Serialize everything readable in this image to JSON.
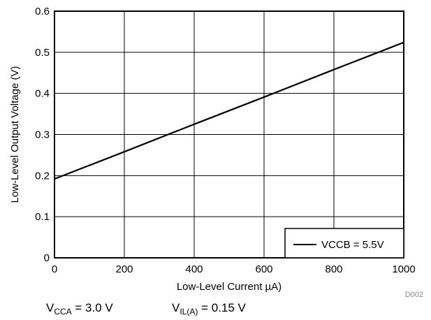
{
  "chart_data": {
    "type": "line",
    "xlabel": "Low-Level Current µA)",
    "ylabel": "Low-Level Output Voltage (V)",
    "xlim": [
      0,
      1000
    ],
    "ylim": [
      0,
      0.6
    ],
    "x_ticks": [
      0,
      200,
      400,
      600,
      800,
      1000
    ],
    "y_ticks": [
      0,
      0.1,
      0.2,
      0.3,
      0.4,
      0.5,
      0.6
    ],
    "x_tick_labels": [
      "0",
      "200",
      "400",
      "600",
      "800",
      "1000"
    ],
    "y_tick_labels": [
      "0",
      "0.1",
      "0.2",
      "0.3",
      "0.4",
      "0.5",
      "0.6"
    ],
    "grid": true,
    "legend_position": "bottom-right",
    "series": [
      {
        "name": "VCCB = 5.5V",
        "color": "#000000",
        "x": [
          0,
          200,
          400,
          600,
          800,
          1000
        ],
        "y": [
          0.192,
          0.258,
          0.325,
          0.391,
          0.458,
          0.524
        ]
      }
    ],
    "figure_id": "D002",
    "conditions": [
      {
        "main": "V",
        "sub": "CCA",
        "rest": " = 3.0 V"
      },
      {
        "main": "V",
        "sub": "IL(A)",
        "rest": " = 0.15 V"
      }
    ]
  }
}
